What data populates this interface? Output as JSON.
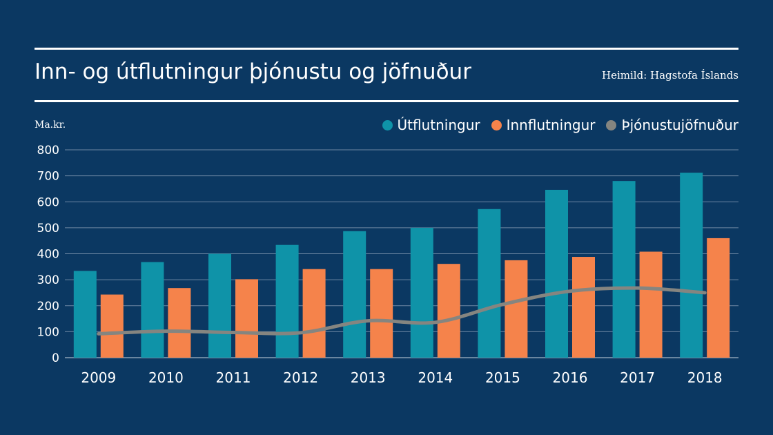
{
  "header": {
    "title": "Inn- og útflutningur þjónustu og jöfnuður",
    "source": "Heimild: Hagstofa Íslands"
  },
  "chart_data": {
    "type": "bar",
    "title": "Inn- og útflutningur þjónustu og jöfnuður",
    "ylabel": "Ma.kr.",
    "xlabel": "",
    "ylim": [
      0,
      800
    ],
    "yticks": [
      0,
      100,
      200,
      300,
      400,
      500,
      600,
      700,
      800
    ],
    "grid": true,
    "legend_position": "top-right",
    "categories": [
      "2009",
      "2010",
      "2011",
      "2012",
      "2013",
      "2014",
      "2015",
      "2016",
      "2017",
      "2018"
    ],
    "series": [
      {
        "name": "Útflutningur",
        "kind": "bar",
        "color": "#0f93a8",
        "values": [
          334,
          368,
          400,
          434,
          487,
          500,
          572,
          646,
          680,
          712
        ]
      },
      {
        "name": "Innflutningur",
        "kind": "bar",
        "color": "#f5834b",
        "values": [
          243,
          268,
          302,
          341,
          341,
          361,
          375,
          388,
          408,
          460
        ]
      },
      {
        "name": "Þjónustujöfnuður",
        "kind": "line",
        "color": "#858580",
        "values": [
          92,
          102,
          97,
          96,
          142,
          136,
          205,
          256,
          268,
          250
        ]
      }
    ]
  },
  "colors": {
    "background": "#0b3862",
    "text": "#ffffff",
    "grid": "#6c86a3"
  }
}
